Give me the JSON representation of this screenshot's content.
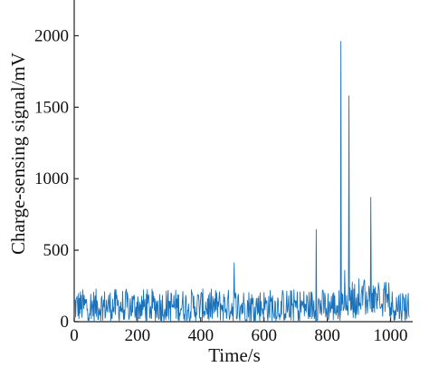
{
  "colors": {
    "series": "#1a72bb",
    "axis": "#222222",
    "background": "#ffffff"
  },
  "chart_data": {
    "type": "line",
    "title": "",
    "xlabel": "Time/s",
    "ylabel": "Charge-sensing signal/mV",
    "xlim": [
      0,
      1070
    ],
    "ylim": [
      0,
      2250
    ],
    "xticks": [
      0,
      200,
      400,
      600,
      800,
      1000
    ],
    "yticks": [
      0,
      500,
      1000,
      1500,
      2000
    ],
    "xtick_labels": [
      "0",
      "200",
      "400",
      "600",
      "800",
      "1000"
    ],
    "ytick_labels": [
      "0",
      "500",
      "1000",
      "1500",
      "2000"
    ],
    "grid": false,
    "legend": "none",
    "series": [
      {
        "sample_interval_s": 1.5,
        "noise_baseline_mv": {
          "range": [
            0,
            1060
          ],
          "low": 0,
          "high": 230,
          "typical": 90
        },
        "peaks": [
          {
            "x": 505,
            "y": 410
          },
          {
            "x": 765,
            "y": 645
          },
          {
            "x": 843,
            "y": 1960
          },
          {
            "x": 868,
            "y": 1580
          },
          {
            "x": 938,
            "y": 870
          },
          {
            "x": 855,
            "y": 360
          },
          {
            "x": 900,
            "y": 300
          }
        ]
      }
    ]
  }
}
